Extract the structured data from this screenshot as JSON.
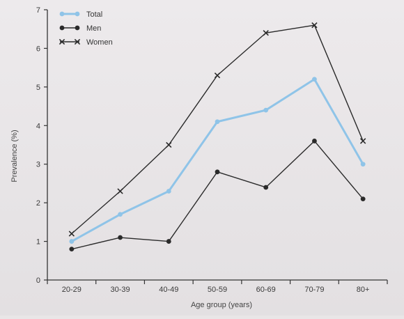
{
  "chart_data": {
    "type": "line",
    "categories": [
      "20-29",
      "30-39",
      "40-49",
      "50-59",
      "60-69",
      "70-79",
      "80+"
    ],
    "series": [
      {
        "name": "Total",
        "values": [
          1.0,
          1.7,
          2.3,
          4.1,
          4.4,
          5.2,
          3.0
        ],
        "color": "#8fc4e8",
        "marker": "dot"
      },
      {
        "name": "Men",
        "values": [
          0.8,
          1.1,
          1.0,
          2.8,
          2.4,
          3.6,
          2.1
        ],
        "color": "#2a2a2a",
        "marker": "dot"
      },
      {
        "name": "Women",
        "values": [
          1.2,
          2.3,
          3.5,
          5.3,
          6.4,
          6.6,
          3.6
        ],
        "color": "#2a2a2a",
        "marker": "x"
      }
    ],
    "xlabel": "Age group (years)",
    "ylabel": "Prevalence (%)",
    "ylim": [
      0,
      7
    ],
    "yticks": [
      0,
      1,
      2,
      3,
      4,
      5,
      6,
      7
    ],
    "grid": false,
    "legend_position": "top-left"
  }
}
